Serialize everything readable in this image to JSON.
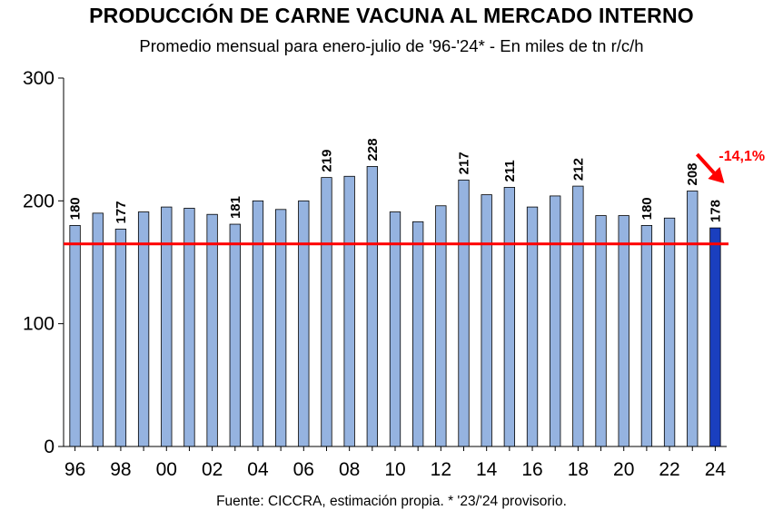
{
  "chart_data": {
    "type": "bar",
    "title": "PRODUCCIÓN DE CARNE VACUNA AL MERCADO INTERNO",
    "subtitle": "Promedio mensual para enero-julio de '96-'24* - En miles de tn r/c/h",
    "source": "Fuente: CICCRA, estimación propia. * '23/'24 provisorio.",
    "categories": [
      "96",
      "97",
      "98",
      "99",
      "00",
      "01",
      "02",
      "03",
      "04",
      "05",
      "06",
      "07",
      "08",
      "09",
      "10",
      "11",
      "12",
      "13",
      "14",
      "15",
      "16",
      "17",
      "18",
      "19",
      "20",
      "21",
      "22",
      "23",
      "24"
    ],
    "values": [
      180,
      190,
      177,
      191,
      195,
      194,
      189,
      181,
      200,
      193,
      200,
      219,
      220,
      228,
      191,
      183,
      196,
      217,
      205,
      211,
      195,
      204,
      212,
      188,
      188,
      180,
      186,
      208,
      178
    ],
    "data_labels": [
      "180",
      "",
      "177",
      "",
      "",
      "",
      "",
      "181",
      "",
      "",
      "",
      "219",
      "",
      "228",
      "",
      "",
      "",
      "217",
      "",
      "211",
      "",
      "",
      "212",
      "",
      "",
      "180",
      "",
      "208",
      "178"
    ],
    "x_tick_labels": [
      "96",
      "",
      "98",
      "",
      "00",
      "",
      "02",
      "",
      "04",
      "",
      "06",
      "",
      "08",
      "",
      "10",
      "",
      "12",
      "",
      "14",
      "",
      "16",
      "",
      "18",
      "",
      "20",
      "",
      "22",
      "",
      "24"
    ],
    "ylim": [
      0,
      300
    ],
    "y_ticks": [
      "0",
      "100",
      "200",
      "300"
    ],
    "reference_line": {
      "value": 165,
      "color": "#ff0000"
    },
    "annotation": {
      "text": "-14,1%",
      "color": "#ff0000"
    },
    "colors": {
      "bar": "#95b3e0",
      "highlight_bar": "#1a3fbf",
      "outline": "#000000"
    },
    "highlight_index": 28,
    "grid": false,
    "legend": "none"
  }
}
